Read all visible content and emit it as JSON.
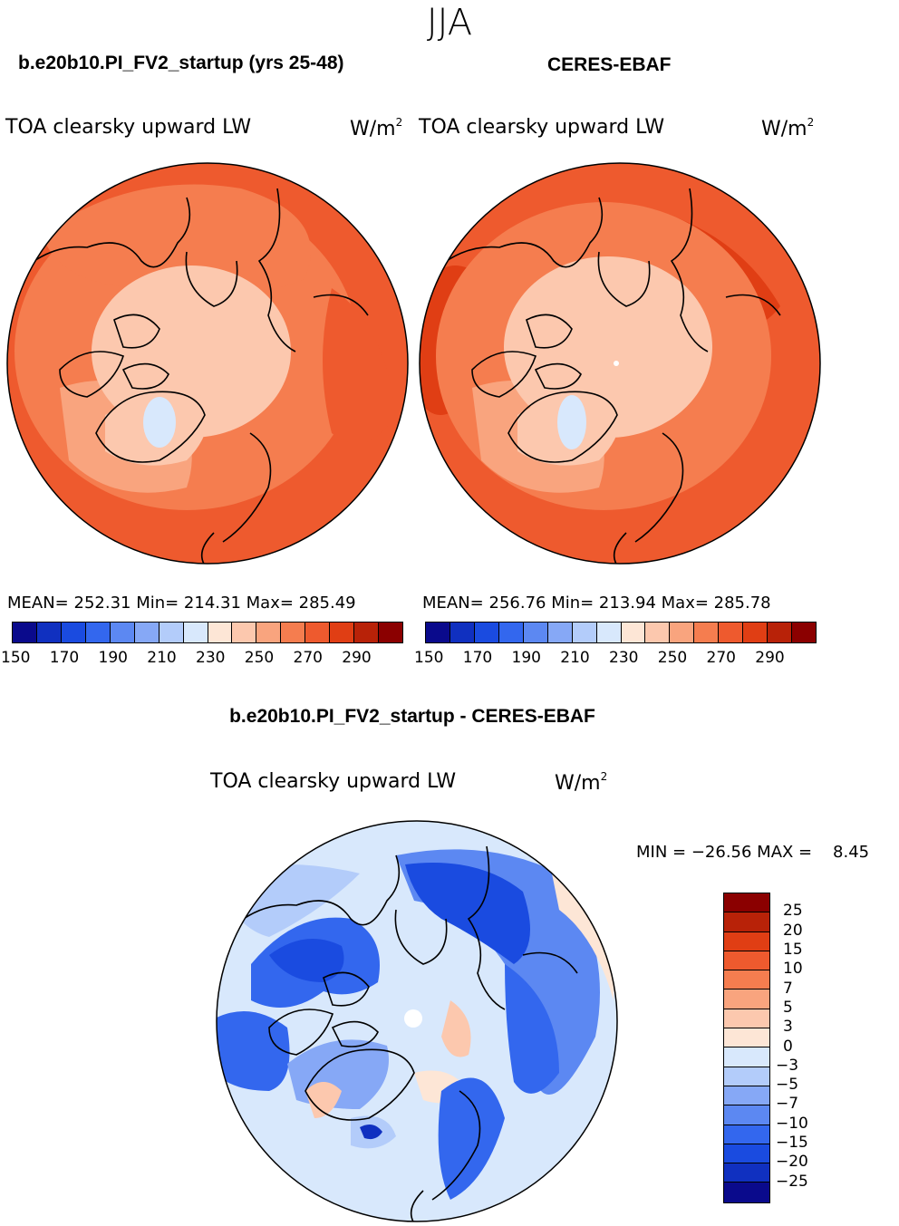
{
  "season": "JJA",
  "panel_left": {
    "title": "b.e20b10.PI_FV2_startup (yrs 25-48)",
    "variable": "TOA clearsky upward LW",
    "units_base": "W/m",
    "units_exp": "2",
    "stats": "MEAN= 252.31   Min= 214.31   Max= 285.49"
  },
  "panel_right": {
    "title": "CERES-EBAF",
    "variable": "TOA clearsky upward LW",
    "units_base": "W/m",
    "units_exp": "2",
    "stats": "MEAN= 256.76   Min= 213.94   Max= 285.78"
  },
  "panel_diff": {
    "title": "b.e20b10.PI_FV2_startup - CERES-EBAF",
    "variable": "TOA clearsky upward LW",
    "units_base": "W/m",
    "units_exp": "2",
    "minmax": "MIN = −26.56 MAX =    8.45"
  },
  "colorbar_abs": {
    "colors": [
      "#0a0a8c",
      "#1030c0",
      "#1a4be0",
      "#3367ee",
      "#5c88f2",
      "#86a8f6",
      "#b3ccfa",
      "#d8e8fc",
      "#fde6d6",
      "#fcc8ae",
      "#f9a47e",
      "#f57d4f",
      "#ee5a2e",
      "#e03e14",
      "#b82208",
      "#8b0000"
    ],
    "labels": [
      "150",
      "170",
      "190",
      "210",
      "230",
      "250",
      "270",
      "290"
    ]
  },
  "colorbar_diff": {
    "colors": [
      "#8b0000",
      "#b82208",
      "#e03e14",
      "#ee5a2e",
      "#f57d4f",
      "#f9a47e",
      "#fcc8ae",
      "#fde6d6",
      "#d8e8fc",
      "#b3ccfa",
      "#86a8f6",
      "#5c88f2",
      "#3367ee",
      "#1a4be0",
      "#1030c0",
      "#0a0a8c"
    ],
    "labels": [
      "25",
      "20",
      "15",
      "10",
      "7",
      "5",
      "3",
      "0",
      "−3",
      "−5",
      "−7",
      "−10",
      "−15",
      "−20",
      "−25"
    ]
  }
}
